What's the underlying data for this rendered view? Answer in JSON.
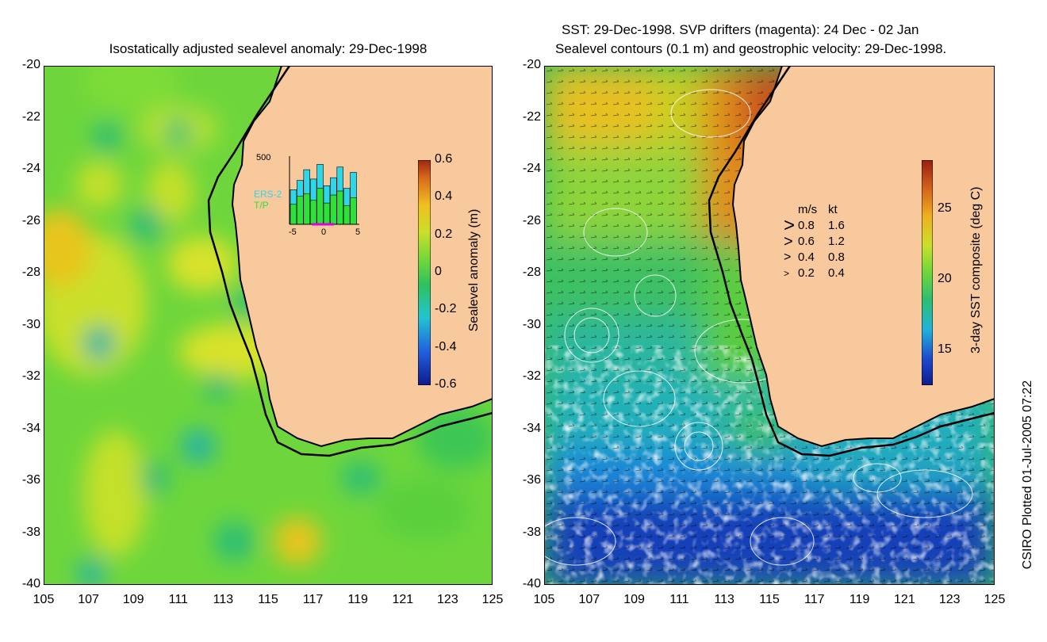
{
  "left_panel": {
    "title": "Isostatically adjusted sealevel anomaly: 29-Dec-1998",
    "colorbar": {
      "label": "Sealevel anomaly (m)",
      "ticks": [
        "0.6",
        "0.4",
        "0.2",
        "0",
        "-0.2",
        "-0.4",
        "-0.6"
      ],
      "range": [
        -0.6,
        0.6
      ]
    },
    "inset": {
      "ymax_label": "500",
      "legend": [
        "ERS-2",
        "T/P"
      ],
      "legend_colors": [
        "#2fd6e8",
        "#2ee03a"
      ],
      "xticks": [
        "-5",
        "0",
        "5"
      ],
      "ers2_values": [
        260,
        330,
        410,
        340,
        450,
        290,
        350,
        430,
        270,
        390
      ],
      "tp_values": [
        150,
        210,
        230,
        180,
        270,
        160,
        220,
        250,
        140,
        200
      ]
    }
  },
  "right_panel": {
    "title_line1": "SST: 29-Dec-1998. SVP drifters (magenta): 24 Dec - 02 Jan",
    "title_line2": "Sealevel contours (0.1 m) and geostrophic velocity: 29-Dec-1998.",
    "colorbar": {
      "label": "3-day SST composite (deg C)",
      "ticks": [
        "25",
        "20",
        "15"
      ],
      "range": [
        12.5,
        28.5
      ]
    },
    "speed_legend": {
      "header_ms": "m/s",
      "header_kt": "kt",
      "rows": [
        {
          "ms": "0.8",
          "kt": "1.6"
        },
        {
          "ms": "0.6",
          "kt": "1.2"
        },
        {
          "ms": "0.4",
          "kt": "0.8"
        },
        {
          "ms": "0.2",
          "kt": "0.4"
        }
      ]
    }
  },
  "axes": {
    "y_ticks": [
      "-20",
      "-22",
      "-24",
      "-26",
      "-28",
      "-30",
      "-32",
      "-34",
      "-36",
      "-38",
      "-40"
    ],
    "x_ticks": [
      "105",
      "107",
      "109",
      "111",
      "113",
      "115",
      "117",
      "119",
      "121",
      "123",
      "125"
    ],
    "lat_range": [
      -40,
      -20
    ],
    "lon_range": [
      105,
      125
    ]
  },
  "credit": "CSIRO Plotted 01-Jul-2005 07:22",
  "colors": {
    "land": "#f9c99e",
    "coastline": "#000000",
    "shelf_contour": "#000000"
  }
}
